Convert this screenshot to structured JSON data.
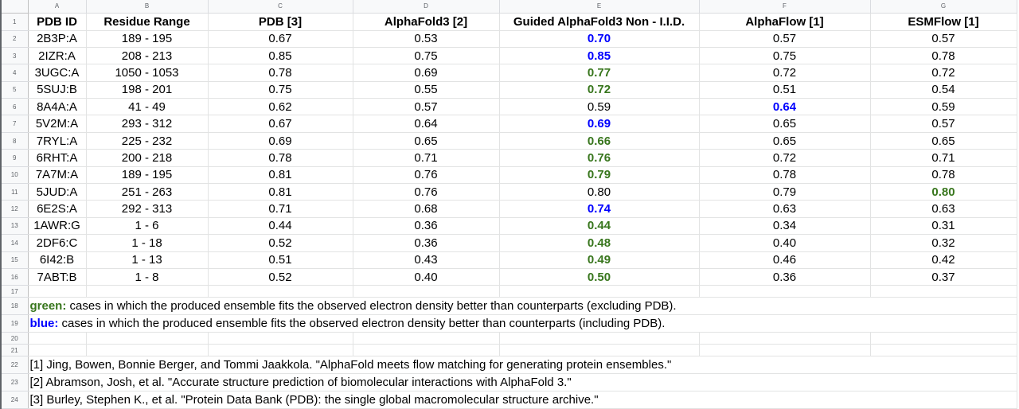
{
  "column_letters": [
    "A",
    "B",
    "C",
    "D",
    "E",
    "F",
    "G"
  ],
  "row_numbers": [
    "1",
    "2",
    "3",
    "4",
    "5",
    "6",
    "7",
    "8",
    "9",
    "10",
    "11",
    "12",
    "13",
    "14",
    "15",
    "16",
    "17",
    "18",
    "19",
    "20",
    "21",
    "22",
    "23",
    "24"
  ],
  "colors": {
    "green": "#38761d",
    "blue": "#0000ff"
  },
  "table": {
    "headers": [
      "PDB ID",
      "Residue Range",
      "PDB [3]",
      "AlphaFold3 [2]",
      "Guided AlphaFold3 Non - I.I.D.",
      "AlphaFlow [1]",
      "ESMFlow [1]"
    ],
    "rows": [
      {
        "cells": [
          "2B3P:A",
          "189 - 195",
          "0.67",
          "0.53",
          "0.70",
          "0.57",
          "0.57"
        ],
        "highlight": {
          "4": "blue"
        }
      },
      {
        "cells": [
          "2IZR:A",
          "208 - 213",
          "0.85",
          "0.75",
          "0.85",
          "0.75",
          "0.78"
        ],
        "highlight": {
          "4": "blue"
        }
      },
      {
        "cells": [
          "3UGC:A",
          "1050 - 1053",
          "0.78",
          "0.69",
          "0.77",
          "0.72",
          "0.72"
        ],
        "highlight": {
          "4": "green"
        }
      },
      {
        "cells": [
          "5SUJ:B",
          "198 - 201",
          "0.75",
          "0.55",
          "0.72",
          "0.51",
          "0.54"
        ],
        "highlight": {
          "4": "green"
        }
      },
      {
        "cells": [
          "8A4A:A",
          "41 - 49",
          "0.62",
          "0.57",
          "0.59",
          "0.64",
          "0.59"
        ],
        "highlight": {
          "5": "blue"
        }
      },
      {
        "cells": [
          "5V2M:A",
          "293 - 312",
          "0.67",
          "0.64",
          "0.69",
          "0.65",
          "0.57"
        ],
        "highlight": {
          "4": "blue"
        }
      },
      {
        "cells": [
          "7RYL:A",
          "225 - 232",
          "0.69",
          "0.65",
          "0.66",
          "0.65",
          "0.65"
        ],
        "highlight": {
          "4": "green"
        }
      },
      {
        "cells": [
          "6RHT:A",
          "200 - 218",
          "0.78",
          "0.71",
          "0.76",
          "0.72",
          "0.71"
        ],
        "highlight": {
          "4": "green"
        }
      },
      {
        "cells": [
          "7A7M:A",
          "189 - 195",
          "0.81",
          "0.76",
          "0.79",
          "0.78",
          "0.78"
        ],
        "highlight": {
          "4": "green"
        }
      },
      {
        "cells": [
          "5JUD:A",
          "251 - 263",
          "0.81",
          "0.76",
          "0.80",
          "0.79",
          "0.80"
        ],
        "highlight": {
          "6": "green"
        }
      },
      {
        "cells": [
          "6E2S:A",
          "292 - 313",
          "0.71",
          "0.68",
          "0.74",
          "0.63",
          "0.63"
        ],
        "highlight": {
          "4": "blue"
        }
      },
      {
        "cells": [
          "1AWR:G",
          "1 - 6",
          "0.44",
          "0.36",
          "0.44",
          "0.34",
          "0.31"
        ],
        "highlight": {
          "4": "green"
        }
      },
      {
        "cells": [
          "2DF6:C",
          "1 - 18",
          "0.52",
          "0.36",
          "0.48",
          "0.40",
          "0.32"
        ],
        "highlight": {
          "4": "green"
        }
      },
      {
        "cells": [
          "6I42:B",
          "1 - 13",
          "0.51",
          "0.43",
          "0.49",
          "0.46",
          "0.42"
        ],
        "highlight": {
          "4": "green"
        }
      },
      {
        "cells": [
          "7ABT:B",
          "1 - 8",
          "0.52",
          "0.40",
          "0.50",
          "0.36",
          "0.37"
        ],
        "highlight": {
          "4": "green"
        }
      }
    ]
  },
  "legend": {
    "green_label": "green:",
    "green_text": " cases in which the produced ensemble fits the observed electron density better than counterparts (excluding PDB).",
    "blue_label": "blue:",
    "blue_text": " cases in which the produced ensemble fits the observed electron density better than counterparts (including PDB)."
  },
  "references": [
    "[1] Jing, Bowen, Bonnie Berger, and Tommi Jaakkola. \"AlphaFold meets flow matching for generating protein ensembles.\"",
    "[2] Abramson, Josh, et al. \"Accurate structure prediction of biomolecular interactions with AlphaFold 3.\"",
    "[3] Burley, Stephen K., et al. \"Protein Data Bank (PDB): the single global macromolecular structure archive.\""
  ]
}
